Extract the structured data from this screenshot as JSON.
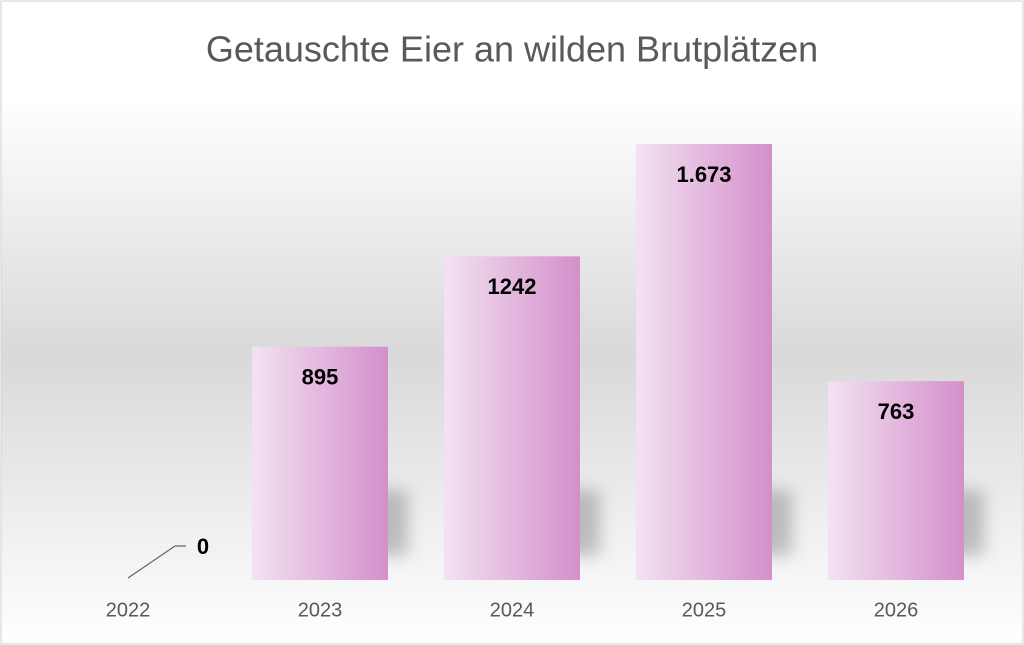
{
  "chart_data": {
    "type": "bar",
    "title": "Getauschte Eier an wilden Brutplätzen",
    "categories": [
      "2022",
      "2023",
      "2024",
      "2025",
      "2026"
    ],
    "values": [
      0,
      895,
      1242,
      1673,
      763
    ],
    "value_labels": [
      "0",
      "895",
      "1242",
      "1.673",
      "763"
    ],
    "color": "#d48fcb"
  }
}
